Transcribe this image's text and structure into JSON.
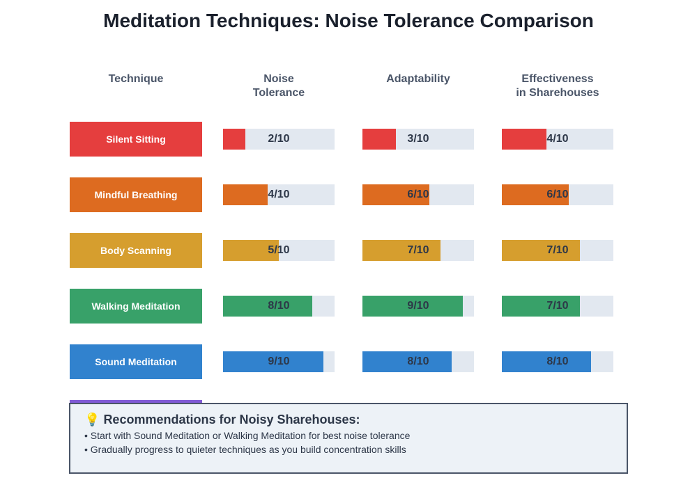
{
  "chart_data": {
    "type": "table",
    "title": "Meditation Techniques: Noise Tolerance Comparison",
    "columns": [
      "Technique",
      "Noise\nTolerance",
      "Adaptability",
      "Effectiveness\nin Sharehouses"
    ],
    "max": 10,
    "rows": [
      {
        "name": "Silent Sitting",
        "color": "#e53e3e",
        "values": [
          2,
          3,
          4
        ]
      },
      {
        "name": "Mindful Breathing",
        "color": "#dd6b20",
        "values": [
          4,
          6,
          6
        ]
      },
      {
        "name": "Body Scanning",
        "color": "#d69e2e",
        "values": [
          5,
          7,
          7
        ]
      },
      {
        "name": "Walking Meditation",
        "color": "#38a169",
        "values": [
          8,
          9,
          7
        ]
      },
      {
        "name": "Sound Meditation",
        "color": "#3182ce",
        "values": [
          9,
          8,
          8
        ]
      },
      {
        "name": "",
        "color": "#805ad5",
        "values": []
      }
    ]
  },
  "recommendations": {
    "icon": "lightbulb-icon",
    "icon_glyph": "💡",
    "title": "Recommendations for Noisy Sharehouses:",
    "items": [
      "• Start with Sound Meditation or Walking Meditation for best noise tolerance",
      "• Gradually progress to quieter techniques as you build concentration skills"
    ]
  }
}
